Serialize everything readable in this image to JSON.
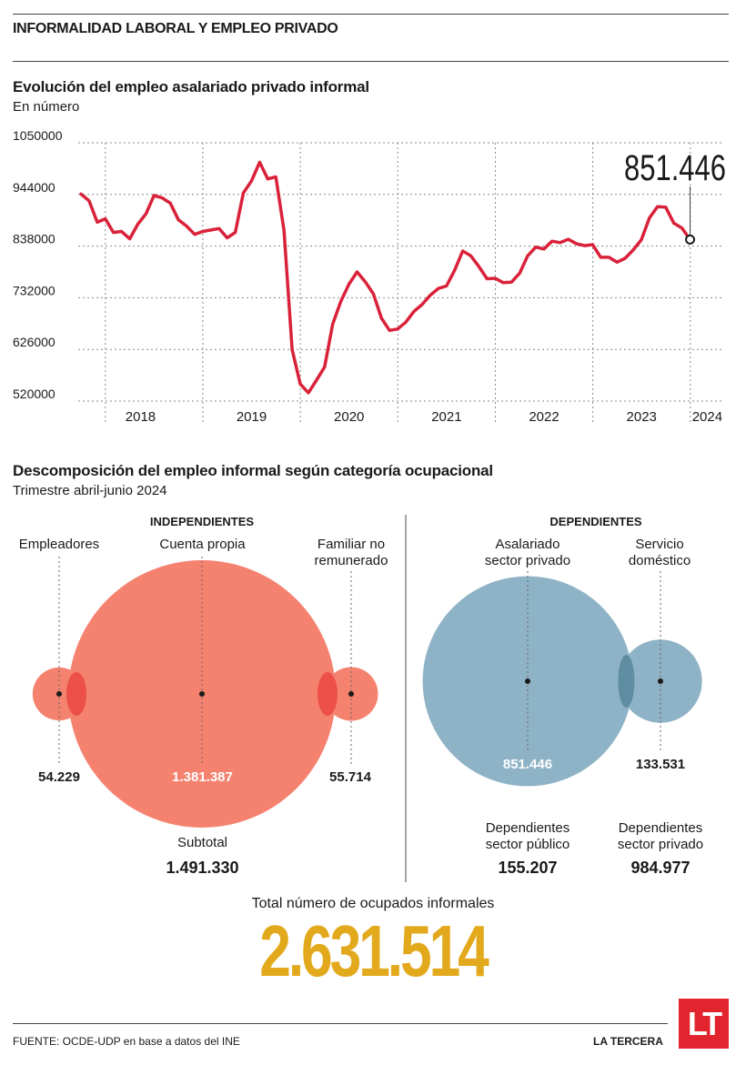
{
  "header": {
    "title": "INFORMALIDAD LABORAL Y EMPLEO PRIVADO"
  },
  "colors": {
    "line": "#d9223a",
    "coral": "#f4826f",
    "coral_overlap": "#ec5048",
    "blue": "#8fb3c6",
    "blue_overlap": "#5f8da2",
    "total": "#e3a91d",
    "brand": "#e1242d"
  },
  "chart_data": [
    {
      "type": "line",
      "title": "Evolución del empleo asalariado privado informal",
      "subtitle": "En número",
      "ylim": [
        520000,
        1050000
      ],
      "yticks": [
        "1050000",
        "944000",
        "838000",
        "732000",
        "626000",
        "520000"
      ],
      "ytick_values": [
        1050000,
        944000,
        838000,
        732000,
        626000,
        520000
      ],
      "xticks": [
        "2018",
        "2019",
        "2020",
        "2021",
        "2022",
        "2023",
        "2024"
      ],
      "grid": true,
      "last_value_label": "851.446",
      "x_start": 2017.75,
      "x_step": 0.0833,
      "values": [
        945000,
        931000,
        887000,
        894000,
        866000,
        868000,
        853000,
        883000,
        904000,
        942000,
        937000,
        926000,
        892000,
        879000,
        862000,
        868000,
        871000,
        874000,
        855000,
        866000,
        947000,
        972000,
        1010000,
        976000,
        980000,
        870000,
        626000,
        555000,
        537000,
        563000,
        590000,
        678000,
        725000,
        760000,
        785000,
        765000,
        740000,
        690000,
        665000,
        668000,
        682000,
        704000,
        718000,
        737000,
        751000,
        756000,
        788000,
        828000,
        818000,
        796000,
        771000,
        772000,
        763000,
        764000,
        782000,
        818000,
        836000,
        832000,
        848000,
        845000,
        852000,
        843000,
        839000,
        841000,
        815000,
        815000,
        805000,
        813000,
        830000,
        851000,
        896000,
        919000,
        918000,
        885000,
        875000,
        851446
      ]
    },
    {
      "type": "bubble",
      "title": "Descomposición del empleo informal según categoría ocupacional",
      "subtitle": "Trimestre abril-junio 2024",
      "groups": [
        {
          "name": "INDEPENDIENTES",
          "items": [
            {
              "label": "Empleadores",
              "value": 54229,
              "value_label": "54.229"
            },
            {
              "label": "Cuenta propia",
              "value": 1381387,
              "value_label": "1.381.387"
            },
            {
              "label": "Familiar no remunerado",
              "value": 55714,
              "value_label": "55.714"
            }
          ],
          "subtotal_label": "Subtotal",
          "subtotal_value": "1.491.330"
        },
        {
          "name": "DEPENDIENTES",
          "items": [
            {
              "label": "Asalariado sector privado",
              "value": 851446,
              "value_label": "851.446"
            },
            {
              "label": "Servicio doméstico",
              "value": 133531,
              "value_label": "133.531"
            }
          ],
          "extra": [
            {
              "label": "Dependientes sector público",
              "value": "155.207"
            },
            {
              "label": "Dependientes sector privado",
              "value": "984.977"
            }
          ]
        }
      ]
    }
  ],
  "total": {
    "label": "Total número de ocupados informales",
    "value": "2.631.514"
  },
  "footer": {
    "source": "FUENTE: OCDE-UDP en base a datos del INE",
    "brand": "LA TERCERA",
    "logo": "LT"
  },
  "labels": {
    "empleadores": "Empleadores",
    "cuenta_propia": "Cuenta propia",
    "familiar_1": "Familiar no",
    "familiar_2": "remunerado",
    "asalariado_1": "Asalariado",
    "asalariado_2": "sector privado",
    "servicio_1": "Servicio",
    "servicio_2": "doméstico",
    "dep_pub_1": "Dependientes",
    "dep_pub_2": "sector público",
    "dep_priv_1": "Dependientes",
    "dep_priv_2": "sector privado"
  }
}
